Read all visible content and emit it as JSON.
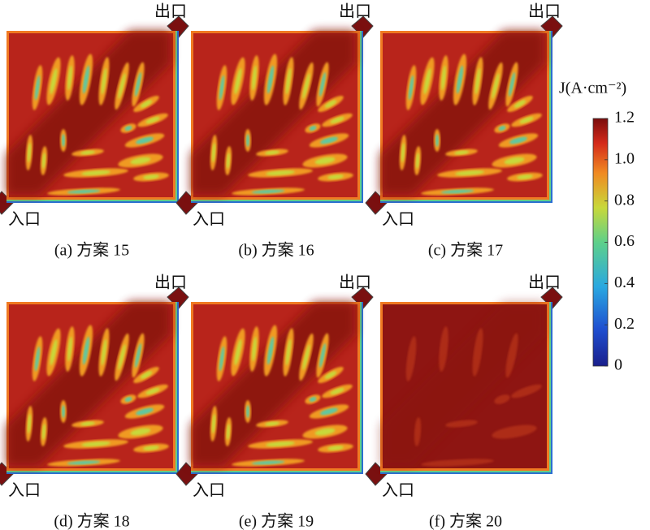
{
  "panels": [
    {
      "caption": "(a) 方案 15",
      "inlet": "入口",
      "outlet": "出口"
    },
    {
      "caption": "(b) 方案 16",
      "inlet": "入口",
      "outlet": "出口"
    },
    {
      "caption": "(c) 方案 17",
      "inlet": "入口",
      "outlet": "出口"
    },
    {
      "caption": "(d) 方案 18",
      "inlet": "入口",
      "outlet": "出口"
    },
    {
      "caption": "(e) 方案 19",
      "inlet": "入口",
      "outlet": "出口"
    },
    {
      "caption": "(f) 方案 20",
      "inlet": "入口",
      "outlet": "出口"
    }
  ],
  "colorbar": {
    "title": "J(A·cm⁻²)",
    "lim": [
      0,
      1.2
    ],
    "ticks": [
      1.2,
      {
        "value": 1,
        "label": "1.0"
      },
      0.8,
      0.6,
      0.4,
      0.2,
      0
    ]
  }
}
